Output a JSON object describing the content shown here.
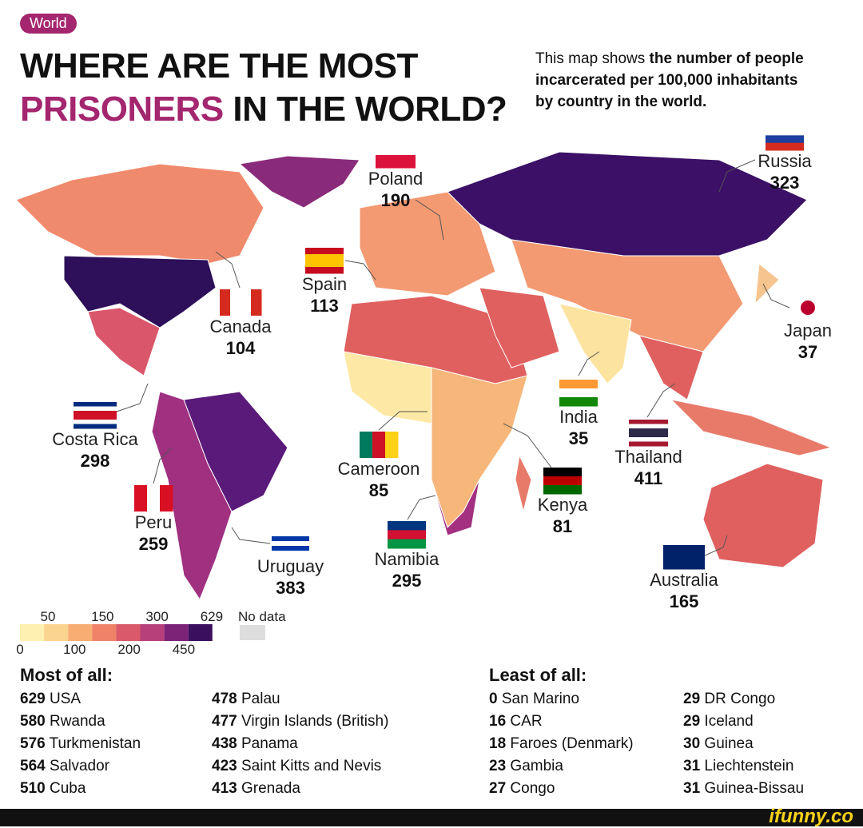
{
  "header": {
    "badge": "World",
    "title_line1": "WHERE ARE THE MOST",
    "title_highlight": "PRISONERS",
    "title_rest": "IN THE WORLD?",
    "subtitle_lines": [
      [
        "This map shows ",
        "the number of people"
      ],
      [
        "incarcerated per 100,000 inhabitants"
      ],
      [
        "by country in the world."
      ]
    ]
  },
  "callouts": [
    {
      "name": "Poland",
      "value": "190"
    },
    {
      "name": "Russia",
      "value": "323"
    },
    {
      "name": "Spain",
      "value": "113"
    },
    {
      "name": "Canada",
      "value": "104"
    },
    {
      "name": "Japan",
      "value": "37"
    },
    {
      "name": "India",
      "value": "35"
    },
    {
      "name": "Costa Rica",
      "value": "298"
    },
    {
      "name": "Cameroon",
      "value": "85"
    },
    {
      "name": "Thailand",
      "value": "411"
    },
    {
      "name": "Kenya",
      "value": "81"
    },
    {
      "name": "Peru",
      "value": "259"
    },
    {
      "name": "Namibia",
      "value": "295"
    },
    {
      "name": "Uruguay",
      "value": "383"
    },
    {
      "name": "Australia",
      "value": "165"
    }
  ],
  "legend": {
    "top_labels": [
      "50",
      "150",
      "300",
      "629"
    ],
    "bottom_labels": [
      "0",
      "100",
      "200",
      "450"
    ],
    "no_data": "No data"
  },
  "most": {
    "heading": "Most of all:",
    "rows": [
      [
        "629",
        "USA"
      ],
      [
        "580",
        "Rwanda"
      ],
      [
        "576",
        "Turkmenistan"
      ],
      [
        "564",
        "Salvador"
      ],
      [
        "510",
        "Cuba"
      ],
      [
        "478",
        "Palau"
      ],
      [
        "477",
        "Virgin Islands (British)"
      ],
      [
        "438",
        "Panama"
      ],
      [
        "423",
        "Saint Kitts and Nevis"
      ],
      [
        "413",
        "Grenada"
      ]
    ]
  },
  "least": {
    "heading": "Least of all:",
    "rows": [
      [
        "0",
        "San Marino"
      ],
      [
        "16",
        "CAR"
      ],
      [
        "18",
        "Faroes (Denmark)"
      ],
      [
        "23",
        "Gambia"
      ],
      [
        "27",
        "Congo"
      ],
      [
        "29",
        "DR Congo"
      ],
      [
        "29",
        "Iceland"
      ],
      [
        "30",
        "Guinea"
      ],
      [
        "31",
        "Liechtenstein"
      ],
      [
        "31",
        "Guinea-Bissau"
      ]
    ]
  },
  "footer": {
    "brand": "ifunny.co"
  }
}
